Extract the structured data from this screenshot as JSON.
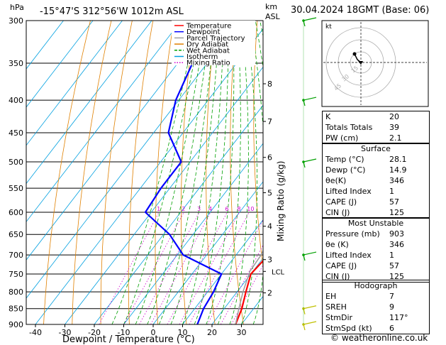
{
  "header": {
    "hpa": "hPa",
    "location": "-15°47'S 312°56'W 1012m ASL",
    "km": "km",
    "asl": "ASL",
    "date": "30.04.2024 18GMT (Base: 06)"
  },
  "colors": {
    "temperature": "#ff0000",
    "dewpoint": "#0000ff",
    "parcel": "#a0a0a0",
    "dry_adiabat": "#e08000",
    "wet_adiabat": "#00a000",
    "isotherm": "#00a0e0",
    "mixing_ratio": "#d000d0"
  },
  "chart_data": {
    "type": "line",
    "title": "-15°47'S 312°56'W 1012m ASL",
    "xlabel": "Dewpoint / Temperature (°C)",
    "ylabel": "hPa",
    "ylabel_right": "Mixing Ratio (g/kg)",
    "xlim": [
      -44,
      38
    ],
    "ylim": [
      900,
      300
    ],
    "x_ticks": [
      -40,
      -30,
      -20,
      -10,
      0,
      10,
      20,
      30
    ],
    "y_ticks": [
      300,
      350,
      400,
      450,
      500,
      550,
      600,
      650,
      700,
      750,
      800,
      850,
      900
    ],
    "km_ticks": [
      {
        "label": "8",
        "p": 377
      },
      {
        "label": "7",
        "p": 432
      },
      {
        "label": "6",
        "p": 492
      },
      {
        "label": "5",
        "p": 559
      },
      {
        "label": "4",
        "p": 631
      },
      {
        "label": "3",
        "p": 712
      },
      {
        "label": "2",
        "p": 803
      }
    ],
    "lcl": {
      "label": "LCL",
      "p": 743
    },
    "mixing_ratio_labels": [
      "1",
      "2",
      "3",
      "4",
      "6",
      "8",
      "10",
      "15",
      "20",
      "25"
    ],
    "legend": [
      "Temperature",
      "Dewpoint",
      "Parcel Trajectory",
      "Dry Adiabat",
      "Wet Adiabat",
      "Isotherm",
      "Mixing Ratio"
    ],
    "legend_position": "top-left",
    "series": [
      {
        "name": "Temperature",
        "points": [
          [
            300,
            -26
          ],
          [
            350,
            -15
          ],
          [
            400,
            -7
          ],
          [
            450,
            1
          ],
          [
            500,
            7
          ],
          [
            550,
            12
          ],
          [
            600,
            16
          ],
          [
            650,
            19
          ],
          [
            700,
            21
          ],
          [
            750,
            20
          ],
          [
            800,
            23
          ],
          [
            850,
            26
          ],
          [
            900,
            28
          ]
        ]
      },
      {
        "name": "Dewpoint",
        "points": [
          [
            300,
            -60
          ],
          [
            350,
            -55
          ],
          [
            400,
            -51
          ],
          [
            450,
            -45
          ],
          [
            500,
            -33
          ],
          [
            550,
            -33
          ],
          [
            600,
            -32
          ],
          [
            650,
            -18
          ],
          [
            700,
            -8
          ],
          [
            750,
            10
          ],
          [
            800,
            12
          ],
          [
            850,
            13
          ],
          [
            900,
            15
          ]
        ]
      },
      {
        "name": "Parcel Trajectory",
        "points": [
          [
            600,
            14
          ],
          [
            650,
            16.5
          ],
          [
            700,
            18.5
          ],
          [
            743,
            19
          ],
          [
            800,
            22
          ],
          [
            850,
            25
          ],
          [
            900,
            28
          ]
        ]
      }
    ]
  },
  "hodograph": {
    "unit_label": "kt",
    "ring_labels": [
      "45",
      "30",
      "15"
    ]
  },
  "indices": [
    {
      "label": "K",
      "value": "20"
    },
    {
      "label": "Totals Totals",
      "value": "39"
    },
    {
      "label": "PW (cm)",
      "value": "2.1"
    }
  ],
  "surface": {
    "title": "Surface",
    "rows": [
      {
        "label": "Temp (°C)",
        "value": "28.1"
      },
      {
        "label": "Dewp (°C)",
        "value": "14.9"
      },
      {
        "label": "θe(K)",
        "value": "346"
      },
      {
        "label": "Lifted Index",
        "value": "1"
      },
      {
        "label": "CAPE (J)",
        "value": "57"
      },
      {
        "label": "CIN (J)",
        "value": "125"
      }
    ]
  },
  "most_unstable": {
    "title": "Most Unstable",
    "rows": [
      {
        "label": "Pressure (mb)",
        "value": "903"
      },
      {
        "label": "θe (K)",
        "value": "346"
      },
      {
        "label": "Lifted Index",
        "value": "1"
      },
      {
        "label": "CAPE (J)",
        "value": "57"
      },
      {
        "label": "CIN (J)",
        "value": "125"
      }
    ]
  },
  "hodograph_table": {
    "title": "Hodograph",
    "rows": [
      {
        "label": "EH",
        "value": "7"
      },
      {
        "label": "SREH",
        "value": "9"
      },
      {
        "label": "StmDir",
        "value": "117°"
      },
      {
        "label": "StmSpd (kt)",
        "value": "6"
      }
    ]
  },
  "copyright": "© weatheronline.co.uk"
}
